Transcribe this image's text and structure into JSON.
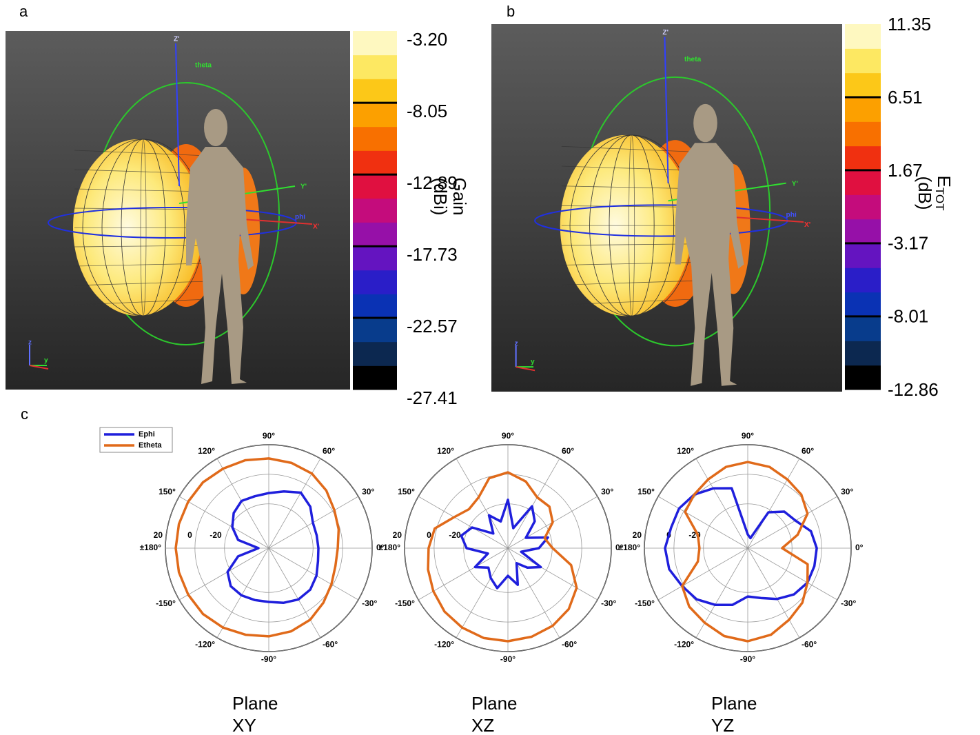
{
  "chart_data": [
    {
      "type": "colorbar",
      "panel_label": "a",
      "axis_label": [
        "Gain",
        "(dBi)"
      ],
      "render_labels": [
        "Z'",
        "theta",
        "Y'",
        "phi",
        "X'",
        "z",
        "y"
      ],
      "clim": [
        -27.41,
        -3.2
      ],
      "ticks": [
        {
          "value": -3.2,
          "label": "-3.20"
        },
        -8.05,
        -12.89,
        -17.73,
        -22.57,
        -27.41
      ],
      "colors": [
        "#000000",
        "#0c2850",
        "#083c8c",
        "#0a32b4",
        "#2a1ec8",
        "#6414c0",
        "#9610a8",
        "#c40c7c",
        "#e01040",
        "#f03010",
        "#f87000",
        "#fca000",
        "#fcc818",
        "#fde862",
        "#fef8c0"
      ]
    },
    {
      "type": "colorbar",
      "panel_label": "b",
      "axis_label": [
        "E",
        "(dB)"
      ],
      "axis_label_sub": "TOT",
      "render_labels": [
        "Z'",
        "theta",
        "Y'",
        "phi",
        "X'",
        "z",
        "y"
      ],
      "clim": [
        -12.86,
        11.35
      ],
      "ticks": [
        11.35,
        6.51,
        1.67,
        -3.17,
        -8.01,
        -12.86
      ],
      "colors": [
        "#000000",
        "#0c2850",
        "#083c8c",
        "#0a32b4",
        "#2a1ec8",
        "#6414c0",
        "#9610a8",
        "#c40c7c",
        "#e01040",
        "#f03010",
        "#f87000",
        "#fca000",
        "#fcc818",
        "#fde862",
        "#fef8c0"
      ]
    },
    {
      "type": "polar",
      "panel_label": "c",
      "xlabel": "Plane XY",
      "legend": "upper left",
      "grid": true,
      "rlim": [
        -50,
        20
      ],
      "rticks": [
        -20,
        0,
        20
      ],
      "thetaticks": [
        {
          "value": 0,
          "label": "0°"
        },
        {
          "value": 30,
          "label": "30°"
        },
        {
          "value": 60,
          "label": "60°"
        },
        {
          "value": 90,
          "label": "90°"
        },
        {
          "value": 120,
          "label": "120°"
        },
        {
          "value": 150,
          "label": "150°"
        },
        {
          "value": 180,
          "label": "±180°"
        },
        {
          "value": -150,
          "label": "-150°"
        },
        {
          "value": -120,
          "label": "-120°"
        },
        {
          "value": -90,
          "label": "-90°"
        },
        {
          "value": -60,
          "label": "-60°"
        },
        {
          "value": -30,
          "label": "-30°"
        }
      ],
      "x": [
        0,
        15,
        30,
        45,
        60,
        75,
        90,
        105,
        120,
        135,
        150,
        165,
        180,
        -165,
        -150,
        -135,
        -120,
        -105,
        -90,
        -75,
        -60,
        -45,
        -30,
        -15
      ],
      "series": [
        {
          "name": "Ephi",
          "color": "#1f1fdc",
          "values": [
            -16.4,
            -16.4,
            -15.5,
            -10.3,
            -6.6,
            -10.3,
            -12.7,
            -13.6,
            -13.1,
            -16.4,
            -21.5,
            -28.5,
            -43,
            -28.5,
            -17.8,
            -13.6,
            -13.1,
            -13.6,
            -13.6,
            -11.7,
            -9.9,
            -10.3,
            -12.7,
            -15.5
          ]
        },
        {
          "name": "Etheta",
          "color": "#e06a1a",
          "values": [
            -3.3,
            -1,
            1.3,
            5.1,
            8.3,
            9.7,
            10.7,
            11.6,
            12.1,
            13,
            13,
            13,
            13,
            13,
            13,
            13,
            12.1,
            10.7,
            9.7,
            8.3,
            6,
            2.3,
            -1,
            -3.3
          ]
        }
      ]
    },
    {
      "type": "polar",
      "xlabel": "Plane XZ",
      "grid": true,
      "rlim": [
        -50,
        20
      ],
      "rticks": [
        -20,
        0,
        20
      ],
      "thetaticks": [
        {
          "value": 0,
          "label": "0°"
        },
        {
          "value": 30,
          "label": "30°"
        },
        {
          "value": 60,
          "label": "60°"
        },
        {
          "value": 90,
          "label": "90°"
        },
        {
          "value": 120,
          "label": "120°"
        },
        {
          "value": 150,
          "label": "150°"
        },
        {
          "value": 180,
          "label": "±180°"
        },
        {
          "value": -150,
          "label": "-150°"
        },
        {
          "value": -120,
          "label": "-120°"
        },
        {
          "value": -90,
          "label": "-90°"
        },
        {
          "value": -60,
          "label": "-60°"
        },
        {
          "value": -30,
          "label": "-30°"
        }
      ],
      "x": [
        0,
        15,
        30,
        45,
        60,
        75,
        90,
        105,
        120,
        135,
        150,
        165,
        180,
        -165,
        -150,
        -135,
        -120,
        -105,
        -90,
        -75,
        -60,
        -45,
        -30,
        -15
      ],
      "series": [
        {
          "name": "Ephi",
          "color": "#1f1fdc",
          "values": [
            -29,
            -22,
            -36,
            -24.3,
            -17.3,
            -36,
            -17.3,
            -31.3,
            -24.3,
            -36,
            -22,
            -17.3,
            -22,
            -36,
            -24.3,
            -31.3,
            -26.7,
            -22,
            -31.3,
            -24.3,
            -38.3,
            -31.3,
            -24.3,
            -40.7
          ]
        },
        {
          "name": "Etheta",
          "color": "#e06a1a",
          "values": [
            -19.7,
            -24.3,
            -15,
            -10.3,
            -10.3,
            -3.3,
            1.3,
            -1,
            -10.3,
            -12.7,
            -8,
            1.3,
            3.7,
            6,
            8.3,
            10.7,
            12.1,
            13,
            13,
            12.1,
            10.7,
            8.3,
            3.7,
            -5.7
          ]
        }
      ]
    },
    {
      "type": "polar",
      "xlabel": "Plane YZ",
      "grid": true,
      "rlim": [
        -50,
        20
      ],
      "rticks": [
        -20,
        0,
        20
      ],
      "thetaticks": [
        {
          "value": 0,
          "label": "0°"
        },
        {
          "value": 30,
          "label": "30°"
        },
        {
          "value": 60,
          "label": "60°"
        },
        {
          "value": 90,
          "label": "90°"
        },
        {
          "value": 120,
          "label": "120°"
        },
        {
          "value": 150,
          "label": "150°"
        },
        {
          "value": 180,
          "label": "±180°"
        },
        {
          "value": -150,
          "label": "-150°"
        },
        {
          "value": -120,
          "label": "-120°"
        },
        {
          "value": -90,
          "label": "-90°"
        },
        {
          "value": -60,
          "label": "-60°"
        },
        {
          "value": -30,
          "label": "-30°"
        }
      ],
      "x": [
        0,
        15,
        30,
        45,
        60,
        75,
        90,
        105,
        120,
        135,
        150,
        165,
        180,
        -165,
        -150,
        -135,
        -120,
        -105,
        -90,
        -75,
        -60,
        -45,
        -30,
        -15
      ],
      "series": [
        {
          "name": "Ephi",
          "color": "#1f1fdc",
          "values": [
            -3.3,
            -5.7,
            -12.7,
            -15,
            -22,
            -43,
            -40.7,
            -8,
            -3.3,
            1.3,
            3.7,
            3.7,
            6,
            5.1,
            1.3,
            -1,
            -5.7,
            -10.3,
            -17.3,
            -15,
            -10.3,
            -5.7,
            -3.3,
            -3.3
          ]
        },
        {
          "name": "Etheta",
          "color": "#e06a1a",
          "values": [
            -26.7,
            -15,
            -3.3,
            1.3,
            3.7,
            6.9,
            8.3,
            6.9,
            3.7,
            1.3,
            -1,
            -15,
            -17.3,
            -15,
            1.3,
            6,
            8.3,
            11.6,
            13,
            10.7,
            6,
            2.3,
            -3.3,
            -8
          ]
        }
      ]
    }
  ]
}
